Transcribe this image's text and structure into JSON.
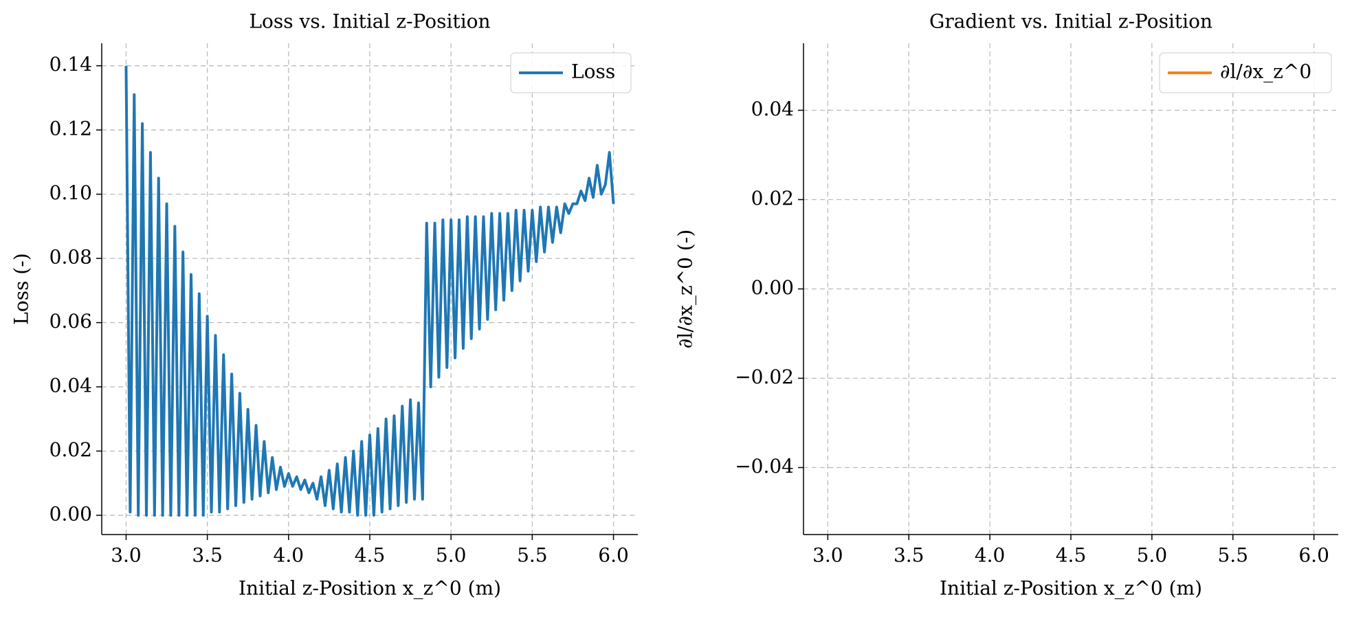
{
  "chart_data": [
    {
      "type": "line",
      "title": "Loss vs. Initial z-Position",
      "x_label": "Initial z-Position x_z^0 (m)",
      "y_label": "Loss (-)",
      "x": [
        3.0,
        3.025,
        3.05,
        3.075,
        3.1,
        3.125,
        3.15,
        3.175,
        3.2,
        3.225,
        3.25,
        3.275,
        3.3,
        3.325,
        3.35,
        3.375,
        3.4,
        3.425,
        3.45,
        3.475,
        3.5,
        3.525,
        3.55,
        3.575,
        3.6,
        3.625,
        3.65,
        3.675,
        3.7,
        3.725,
        3.75,
        3.775,
        3.8,
        3.825,
        3.85,
        3.875,
        3.9,
        3.925,
        3.95,
        3.975,
        4.0,
        4.025,
        4.05,
        4.075,
        4.1,
        4.125,
        4.15,
        4.175,
        4.2,
        4.225,
        4.25,
        4.275,
        4.3,
        4.325,
        4.35,
        4.375,
        4.4,
        4.425,
        4.45,
        4.475,
        4.5,
        4.525,
        4.55,
        4.575,
        4.6,
        4.625,
        4.65,
        4.675,
        4.7,
        4.725,
        4.75,
        4.775,
        4.8,
        4.825,
        4.85,
        4.875,
        4.9,
        4.925,
        4.95,
        4.975,
        5.0,
        5.025,
        5.05,
        5.075,
        5.1,
        5.125,
        5.15,
        5.175,
        5.2,
        5.225,
        5.25,
        5.275,
        5.3,
        5.325,
        5.35,
        5.375,
        5.4,
        5.425,
        5.45,
        5.475,
        5.5,
        5.525,
        5.55,
        5.575,
        5.6,
        5.625,
        5.65,
        5.675,
        5.7,
        5.725,
        5.75,
        5.775,
        5.8,
        5.825,
        5.85,
        5.875,
        5.9,
        5.925,
        5.95,
        5.975,
        6.0
      ],
      "series": [
        {
          "name": "Loss",
          "color": "#1f77b4",
          "values": [
            0.14,
            0.001,
            0.131,
            0.0,
            0.122,
            0.0,
            0.113,
            0.0,
            0.105,
            0.0,
            0.097,
            0.0,
            0.09,
            0.0,
            0.082,
            0.0,
            0.075,
            0.0,
            0.069,
            0.0,
            0.062,
            0.001,
            0.056,
            0.001,
            0.05,
            0.002,
            0.044,
            0.003,
            0.038,
            0.004,
            0.033,
            0.005,
            0.028,
            0.006,
            0.023,
            0.007,
            0.018,
            0.008,
            0.015,
            0.009,
            0.013,
            0.009,
            0.012,
            0.008,
            0.011,
            0.007,
            0.01,
            0.005,
            0.012,
            0.003,
            0.014,
            0.002,
            0.016,
            0.001,
            0.018,
            0.001,
            0.02,
            0.0,
            0.023,
            0.0,
            0.025,
            0.0,
            0.027,
            0.001,
            0.03,
            0.002,
            0.031,
            0.003,
            0.034,
            0.004,
            0.036,
            0.005,
            0.035,
            0.005,
            0.091,
            0.04,
            0.091,
            0.043,
            0.092,
            0.046,
            0.092,
            0.049,
            0.092,
            0.052,
            0.093,
            0.055,
            0.093,
            0.058,
            0.093,
            0.061,
            0.094,
            0.064,
            0.094,
            0.067,
            0.094,
            0.07,
            0.095,
            0.073,
            0.095,
            0.076,
            0.095,
            0.079,
            0.096,
            0.082,
            0.096,
            0.085,
            0.096,
            0.088,
            0.097,
            0.094,
            0.097,
            0.097,
            0.101,
            0.098,
            0.105,
            0.099,
            0.109,
            0.1,
            0.103,
            0.113,
            0.097
          ]
        }
      ],
      "xlim": [
        2.85,
        6.15
      ],
      "xticks": [
        {
          "value": 3,
          "label": "3.0"
        },
        3.5,
        {
          "value": 4,
          "label": "4.0"
        },
        4.5,
        {
          "value": 5,
          "label": "5.0"
        },
        5.5,
        {
          "value": 6,
          "label": "6.0"
        }
      ],
      "ylim": [
        -0.006,
        0.147
      ],
      "yticks": [
        {
          "value": 0,
          "label": "0.00"
        },
        0.02,
        0.04,
        0.06,
        0.08,
        {
          "value": 0.1,
          "label": "0.10"
        },
        0.12,
        0.14
      ],
      "grid": true,
      "legend": "upper right"
    },
    {
      "type": "line",
      "title": "Gradient vs. Initial z-Position",
      "x_label": "Initial z-Position x_z^0 (m)",
      "y_label": "∂l/∂x_z^0 (-)",
      "x": [],
      "series": [
        {
          "name": "∂l/∂x_z^0",
          "color": "#ff7f0e",
          "values": []
        }
      ],
      "xlim": [
        2.85,
        6.15
      ],
      "xticks": [
        {
          "value": 3,
          "label": "3.0"
        },
        3.5,
        {
          "value": 4,
          "label": "4.0"
        },
        4.5,
        {
          "value": 5,
          "label": "5.0"
        },
        5.5,
        {
          "value": 6,
          "label": "6.0"
        }
      ],
      "ylim": [
        -0.055,
        0.055
      ],
      "yticks": [
        {
          "value": -0.04,
          "label": "−0.04"
        },
        {
          "value": -0.02,
          "label": "−0.02"
        },
        {
          "value": 0,
          "label": "0.00"
        },
        0.02,
        0.04
      ],
      "grid": true,
      "legend": "upper right"
    }
  ]
}
